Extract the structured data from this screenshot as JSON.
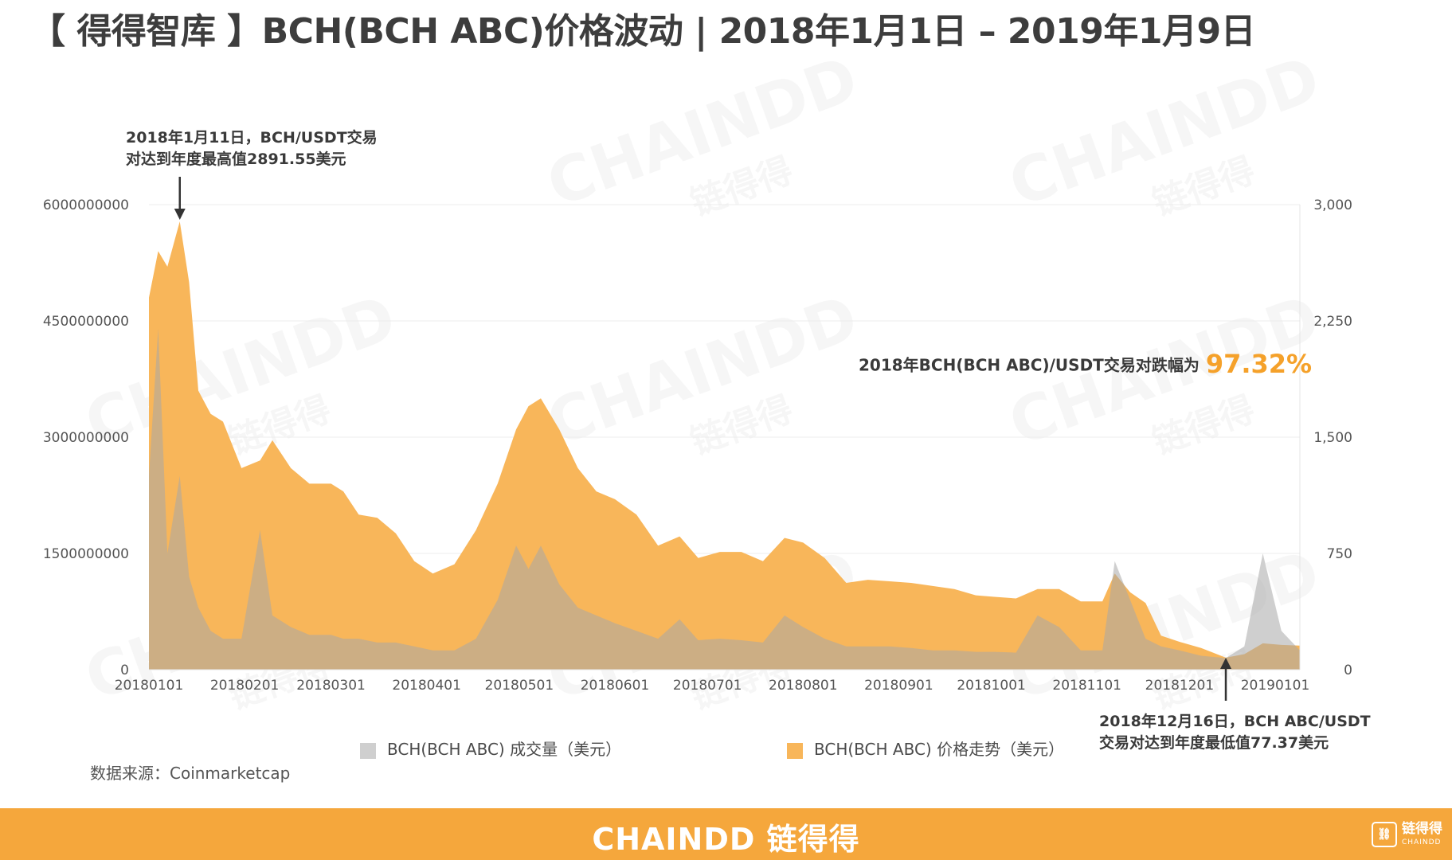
{
  "title": "【 得得智库 】BCH(BCH ABC)价格波动 | 2018年1月1日 – 2019年1月9日",
  "annotations": {
    "peak_line1": "2018年1月11日，BCH/USDT交易",
    "peak_line2": "对达到年度最高值2891.55美元",
    "drop_text": "2018年BCH(BCH ABC)/USDT交易对跌幅为",
    "drop_pct": "97.32%",
    "low_line1": "2018年12月16日，BCH ABC/USDT",
    "low_line2": "交易对达到年度最低值77.37美元"
  },
  "legend": {
    "volume_label": "BCH(BCH ABC) 成交量（美元）",
    "price_label": "BCH(BCH ABC)  价格走势（美元）"
  },
  "source": "数据来源：Coinmarketcap",
  "watermark": {
    "en": "CHAINDD",
    "cn": "链得得"
  },
  "footer": {
    "brand": "CHAINDD 链得得",
    "logo_cn": "链得得",
    "logo_en": "CHAINDD"
  },
  "colors": {
    "price_fill": "#f8b65a",
    "volume_fill": "#c8c8c8",
    "footer_bg": "#f5a73c",
    "highlight": "#f5a12a"
  },
  "chart_data": {
    "type": "area",
    "x_start": "20180101",
    "x_end": "20190109",
    "x_ticks": [
      "20180101",
      "20180201",
      "20180301",
      "20180401",
      "20180501",
      "20180601",
      "20180701",
      "20180801",
      "20180901",
      "20181001",
      "20181101",
      "20181201",
      "20190101"
    ],
    "y_left_ticks": [
      "0",
      "1500000000",
      "3000000000",
      "4500000000",
      "6000000000"
    ],
    "y_left_range": [
      0,
      6000000000
    ],
    "y_right_ticks": [
      "0",
      "750",
      "1,500",
      "2,250",
      "3,000"
    ],
    "y_right_range": [
      0,
      3000
    ],
    "grid": true,
    "series": [
      {
        "name": "BCH(BCH ABC)  价格走势（美元）",
        "axis": "right",
        "x": [
          "20180101",
          "20180104",
          "20180107",
          "20180111",
          "20180114",
          "20180117",
          "20180121",
          "20180125",
          "20180131",
          "20180206",
          "20180210",
          "20180216",
          "20180222",
          "20180301",
          "20180305",
          "20180310",
          "20180316",
          "20180322",
          "20180328",
          "20180403",
          "20180410",
          "20180417",
          "20180424",
          "20180430",
          "20180504",
          "20180508",
          "20180514",
          "20180520",
          "20180526",
          "20180601",
          "20180608",
          "20180615",
          "20180622",
          "20180628",
          "20180705",
          "20180712",
          "20180719",
          "20180726",
          "20180801",
          "20180808",
          "20180815",
          "20180822",
          "20180829",
          "20180905",
          "20180912",
          "20180919",
          "20180926",
          "20181002",
          "20181009",
          "20181016",
          "20181023",
          "20181030",
          "20181106",
          "20181110",
          "20181115",
          "20181120",
          "20181125",
          "20181201",
          "20181208",
          "20181216",
          "20181222",
          "20181228",
          "20190103",
          "20190109"
        ],
        "values": [
          2400,
          2700,
          2600,
          2891.55,
          2500,
          1800,
          1650,
          1600,
          1300,
          1350,
          1480,
          1300,
          1200,
          1200,
          1150,
          1000,
          980,
          880,
          700,
          620,
          680,
          900,
          1200,
          1550,
          1700,
          1750,
          1550,
          1300,
          1150,
          1100,
          1000,
          800,
          860,
          720,
          760,
          760,
          700,
          850,
          820,
          720,
          560,
          580,
          570,
          560,
          540,
          520,
          480,
          470,
          460,
          520,
          520,
          440,
          440,
          620,
          500,
          430,
          220,
          180,
          140,
          77.37,
          100,
          170,
          160,
          155
        ]
      },
      {
        "name": "BCH(BCH ABC) 成交量（美元）",
        "axis": "left",
        "x": [
          "20180101",
          "20180104",
          "20180107",
          "20180111",
          "20180114",
          "20180117",
          "20180121",
          "20180125",
          "20180131",
          "20180206",
          "20180210",
          "20180216",
          "20180222",
          "20180301",
          "20180305",
          "20180310",
          "20180316",
          "20180322",
          "20180328",
          "20180403",
          "20180410",
          "20180417",
          "20180424",
          "20180430",
          "20180504",
          "20180508",
          "20180514",
          "20180520",
          "20180526",
          "20180601",
          "20180608",
          "20180615",
          "20180622",
          "20180628",
          "20180705",
          "20180712",
          "20180719",
          "20180726",
          "20180801",
          "20180808",
          "20180815",
          "20180822",
          "20180829",
          "20180905",
          "20180912",
          "20180919",
          "20180926",
          "20181002",
          "20181009",
          "20181016",
          "20181023",
          "20181030",
          "20181106",
          "20181110",
          "20181115",
          "20181120",
          "20181125",
          "20181201",
          "20181208",
          "20181216",
          "20181222",
          "20181228",
          "20190103",
          "20190109"
        ],
        "values": [
          2500000000,
          4400000000,
          1500000000,
          2500000000,
          1200000000,
          800000000,
          500000000,
          400000000,
          400000000,
          1800000000,
          700000000,
          550000000,
          450000000,
          450000000,
          400000000,
          400000000,
          350000000,
          350000000,
          300000000,
          250000000,
          250000000,
          400000000,
          900000000,
          1600000000,
          1300000000,
          1600000000,
          1100000000,
          800000000,
          700000000,
          600000000,
          500000000,
          400000000,
          650000000,
          380000000,
          400000000,
          380000000,
          350000000,
          700000000,
          550000000,
          400000000,
          300000000,
          300000000,
          300000000,
          280000000,
          250000000,
          250000000,
          230000000,
          230000000,
          220000000,
          700000000,
          550000000,
          250000000,
          250000000,
          1400000000,
          900000000,
          400000000,
          300000000,
          250000000,
          180000000,
          150000000,
          300000000,
          1500000000,
          500000000,
          250000000
        ]
      }
    ]
  }
}
